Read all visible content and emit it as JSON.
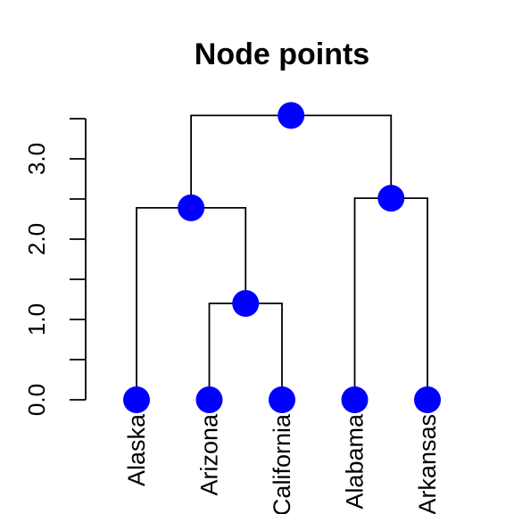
{
  "chart_data": {
    "type": "dendrogram",
    "title": "Node points",
    "ylim": [
      0,
      3.55
    ],
    "y_major_ticks": [
      0,
      1,
      2,
      3
    ],
    "y_major_tick_labels": [
      "0.0",
      "1.0",
      "2.0",
      "3.0"
    ],
    "y_minor_ticks": [
      0.5,
      1.5,
      2.5,
      3.5
    ],
    "leaves": [
      "Alaska",
      "Arizona",
      "California",
      "Alabama",
      "Arkansas"
    ],
    "merges": [
      {
        "id": "n1",
        "left": "Arizona",
        "right": "California",
        "height": 1.2
      },
      {
        "id": "n2",
        "left": "Alaska",
        "right": "n1",
        "height": 2.39
      },
      {
        "id": "n3",
        "left": "Alabama",
        "right": "Arkansas",
        "height": 2.51
      },
      {
        "id": "n4",
        "left": "n2",
        "right": "n3",
        "height": 3.54
      }
    ],
    "node_point_color": "#0000ff",
    "branch_color": "#000000"
  }
}
